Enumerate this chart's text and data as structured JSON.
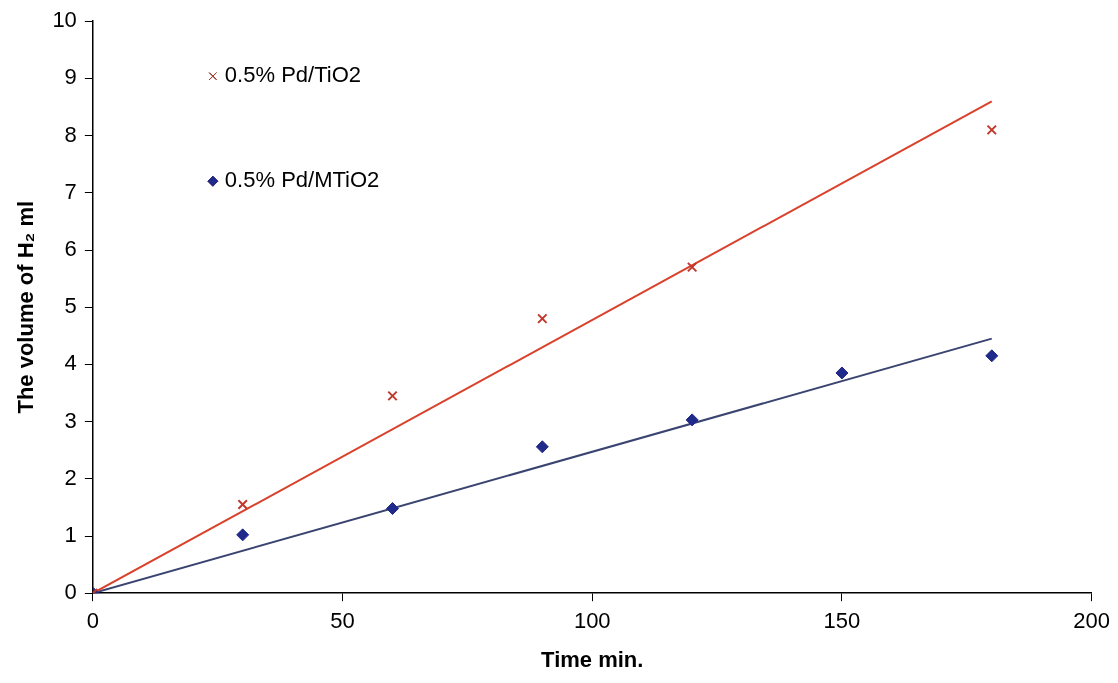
{
  "chart_data": {
    "type": "scatter",
    "xlabel": "Time min.",
    "ylabel": "The volume of H₂ ml",
    "xlim": [
      0,
      200
    ],
    "xticks": [
      0,
      50,
      100,
      150,
      200
    ],
    "ylim": [
      0,
      10
    ],
    "yticks": [
      0,
      1,
      2,
      3,
      4,
      5,
      6,
      7,
      8,
      9,
      10
    ],
    "grid": false,
    "legend": "top left",
    "series": [
      {
        "name": "0.5% Pd/TiO2",
        "color": "#c0392b",
        "marker": "cross",
        "x": [
          0,
          30,
          60,
          90,
          120,
          180
        ],
        "values": [
          0,
          1.55,
          3.45,
          4.8,
          5.7,
          8.1
        ]
      },
      {
        "name": "0.5% Pd/MTiO2",
        "color": "#1f2a8a",
        "marker": "diamond",
        "x": [
          0,
          30,
          60,
          90,
          120,
          150,
          180
        ],
        "values": [
          0,
          1.02,
          1.48,
          2.56,
          3.03,
          3.85,
          4.15
        ]
      },
      {
        "type": "line",
        "color": "#d9412b",
        "marker": "none",
        "x": [
          0,
          180
        ],
        "values": [
          0,
          8.6
        ]
      },
      {
        "type": "line",
        "color": "#3a4470",
        "marker": "none",
        "x": [
          0,
          180
        ],
        "values": [
          0,
          4.45
        ]
      }
    ]
  }
}
